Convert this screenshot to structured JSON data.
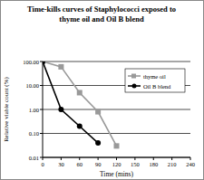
{
  "chart_data": {
    "type": "line",
    "title": "Time-kills curves of Staphylococci exposed to thyme oil and Oil B blend",
    "x_label": "Time (mins)",
    "y_label": "Relative viable count (%)",
    "x": [
      0,
      30,
      60,
      90,
      120
    ],
    "series": [
      {
        "name": "thyme oil",
        "color": "#999999",
        "marker": "square",
        "values": [
          100,
          60,
          5,
          0.8,
          0.03
        ]
      },
      {
        "name": "Oil B blend",
        "color": "#000000",
        "marker": "circle",
        "values": [
          100,
          1,
          0.2,
          0.04,
          null
        ]
      }
    ],
    "xlim": [
      0,
      240
    ],
    "xticks": [
      0,
      30,
      60,
      90,
      120,
      150,
      180,
      210,
      240
    ],
    "ylim": [
      0.01,
      100
    ],
    "yticks": [
      {
        "value": 0.01,
        "label": "0.01"
      },
      {
        "value": 0.1,
        "label": "0.10"
      },
      {
        "value": 1,
        "label": "1.00"
      },
      {
        "value": 10,
        "label": "10.00"
      },
      {
        "value": 100,
        "label": "100.00"
      }
    ],
    "log": "y",
    "grid": true,
    "legend": "upper right"
  }
}
